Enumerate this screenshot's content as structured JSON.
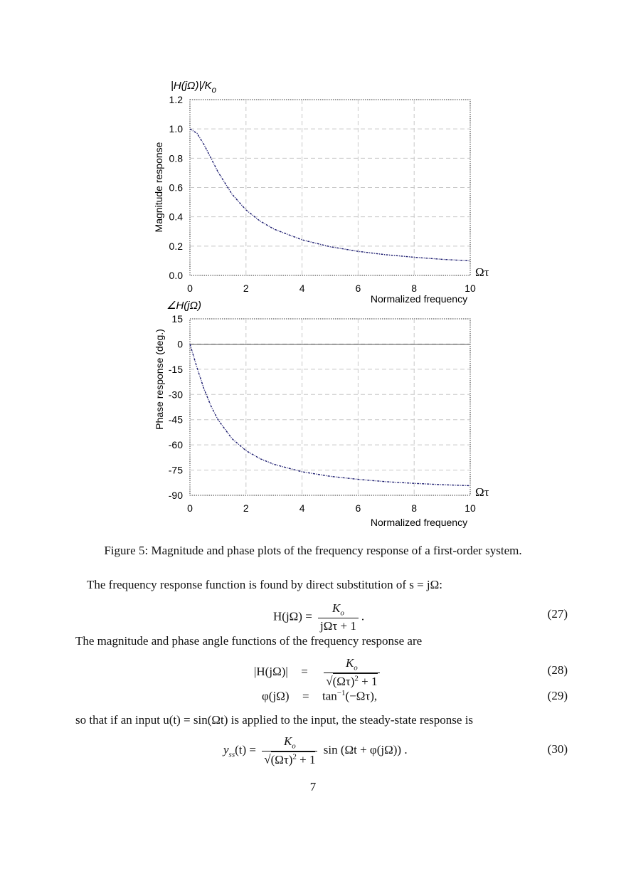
{
  "chart_data": [
    {
      "type": "line",
      "title": "|H(jΩ)|/K",
      "title_sub": "o",
      "xlabel": "Normalized frequency",
      "x_axis_symbol": "Ωτ",
      "ylabel": "Magnitude response",
      "xlim": [
        0,
        10
      ],
      "ylim": [
        0,
        1.2
      ],
      "xticks": [
        "0",
        "2",
        "4",
        "6",
        "8",
        "10"
      ],
      "yticks": [
        "0.0",
        "0.2",
        "0.4",
        "0.6",
        "0.8",
        "1.0",
        "1.2"
      ],
      "grid": true,
      "series": [
        {
          "values_x": [
            0,
            0.25,
            0.5,
            0.75,
            1,
            1.5,
            2,
            2.5,
            3,
            4,
            5,
            6,
            7,
            8,
            9,
            10
          ],
          "values_y": [
            1.0,
            0.97,
            0.894,
            0.8,
            0.707,
            0.555,
            0.447,
            0.371,
            0.316,
            0.243,
            0.196,
            0.164,
            0.141,
            0.124,
            0.11,
            0.0995
          ],
          "color": "#1a1a6e"
        }
      ]
    },
    {
      "type": "line",
      "title": "∠H(jΩ)",
      "xlabel": "Normalized frequency",
      "x_axis_symbol": "Ωτ",
      "ylabel": "Phase response (deg.)",
      "xlim": [
        0,
        10
      ],
      "ylim": [
        -90,
        15
      ],
      "xticks": [
        "0",
        "2",
        "4",
        "6",
        "8",
        "10"
      ],
      "yticks": [
        "15",
        "0",
        "-15",
        "-30",
        "-45",
        "-60",
        "-75",
        "-90"
      ],
      "grid": true,
      "series": [
        {
          "values_x": [
            0,
            0.25,
            0.5,
            0.75,
            1,
            1.5,
            2,
            2.5,
            3,
            4,
            5,
            6,
            7,
            8,
            9,
            10
          ],
          "values_y": [
            0,
            -14.0,
            -26.6,
            -36.9,
            -45.0,
            -56.3,
            -63.4,
            -68.2,
            -71.6,
            -76.0,
            -78.7,
            -80.5,
            -81.9,
            -82.9,
            -83.7,
            -84.3
          ],
          "color": "#1a1a6e"
        }
      ]
    }
  ],
  "caption": "Figure 5: Magnitude and phase plots of the frequency response of a first-order system.",
  "para1": "The frequency response function is found by direct substitution of s = jΩ:",
  "para2": "The magnitude and phase angle functions of the frequency response are",
  "para3": "so that if an input u(t) = sin(Ωt) is applied to the input, the steady-state response is",
  "eq27": {
    "lhs": "H(jΩ) =",
    "num": "K",
    "num_sub": "o",
    "den": "jΩτ + 1",
    "tail": ".",
    "number": "(27)"
  },
  "eq28": {
    "lhs": "|H(jΩ)|",
    "eq": "=",
    "num": "K",
    "num_sub": "o",
    "den": "(Ωτ)",
    "den_sup": "2",
    "den_tail": " + 1",
    "number": "(28)"
  },
  "eq29": {
    "lhs": "φ(jΩ)",
    "eq": "=",
    "rhs_a": "tan",
    "rhs_sup": "−1",
    "rhs_b": "(−Ωτ),",
    "number": "(29)"
  },
  "eq30": {
    "lhs": "y",
    "lhs_sub": "ss",
    "lhs_tail": "(t) =",
    "num": "K",
    "num_sub": "o",
    "den": "(Ωτ)",
    "den_sup": "2",
    "den_tail": " + 1",
    "tail": "sin (Ωt + φ(jΩ)) .",
    "number": "(30)"
  },
  "page_number": "7"
}
